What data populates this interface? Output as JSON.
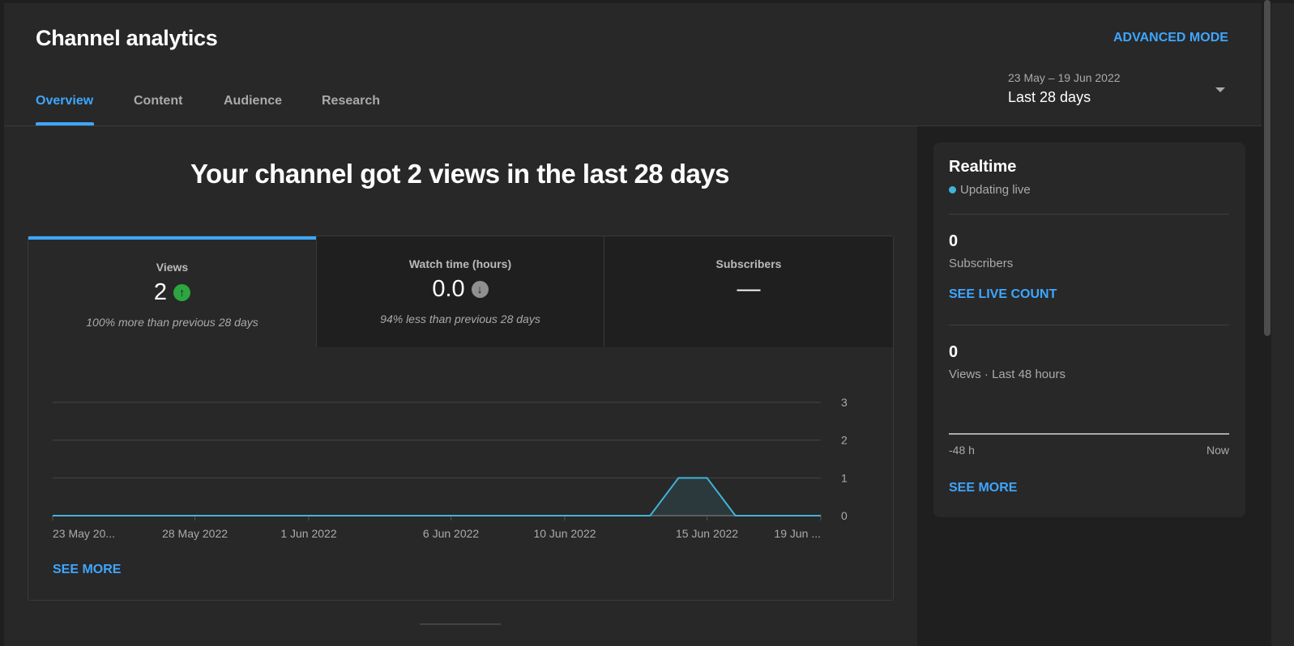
{
  "header": {
    "title": "Channel analytics",
    "advanced_mode": "ADVANCED MODE",
    "tabs": [
      {
        "label": "Overview",
        "active": true
      },
      {
        "label": "Content"
      },
      {
        "label": "Audience"
      },
      {
        "label": "Research"
      }
    ],
    "date_range": "23 May – 19 Jun 2022",
    "date_preset": "Last 28 days"
  },
  "headline": "Your channel got 2 views in the last 28 days",
  "metrics": [
    {
      "label": "Views",
      "value": "2",
      "trend": "up",
      "trend_icon": "arrow-up-icon",
      "comparison": "100% more than previous 28 days",
      "selected": true
    },
    {
      "label": "Watch time (hours)",
      "value": "0.0",
      "trend": "down",
      "trend_icon": "arrow-down-icon",
      "comparison": "94% less than previous 28 days"
    },
    {
      "label": "Subscribers",
      "value": "—"
    }
  ],
  "colors": {
    "accent": "#3ea6ff",
    "trend_up": "#2ba640",
    "trend_down": "#909090",
    "line": "#41b4d9"
  },
  "chart_data": {
    "type": "line",
    "series": [
      {
        "values": [
          0,
          0,
          0,
          0,
          0,
          0,
          0,
          0,
          0,
          0,
          0,
          0,
          0,
          0,
          0,
          0,
          0,
          0,
          0,
          0,
          0,
          0,
          1,
          1,
          0,
          0,
          0,
          0
        ]
      }
    ],
    "x": [
      "23 May 2022",
      "24 May 2022",
      "25 May 2022",
      "26 May 2022",
      "27 May 2022",
      "28 May 2022",
      "29 May 2022",
      "30 May 2022",
      "31 May 2022",
      "1 Jun 2022",
      "2 Jun 2022",
      "3 Jun 2022",
      "4 Jun 2022",
      "5 Jun 2022",
      "6 Jun 2022",
      "7 Jun 2022",
      "8 Jun 2022",
      "9 Jun 2022",
      "10 Jun 2022",
      "11 Jun 2022",
      "12 Jun 2022",
      "13 Jun 2022",
      "14 Jun 2022",
      "15 Jun 2022",
      "16 Jun 2022",
      "17 Jun 2022",
      "18 Jun 2022",
      "19 Jun 2022"
    ],
    "xtick_labels": [
      "23 May 20...",
      "28 May 2022",
      "1 Jun 2022",
      "6 Jun 2022",
      "10 Jun 2022",
      "15 Jun 2022",
      "19 Jun ..."
    ],
    "xtick_index": [
      0,
      5,
      9,
      14,
      18,
      23,
      27
    ],
    "yticks": [
      "0",
      "1",
      "2",
      "3"
    ],
    "ylim": [
      0,
      3
    ],
    "grid": true,
    "y_axis": "right"
  },
  "see_more": "SEE MORE",
  "realtime": {
    "title": "Realtime",
    "status": "Updating live",
    "subscribers": "0",
    "subscribers_label": "Subscribers",
    "see_live": "SEE LIVE COUNT",
    "views": "0",
    "views_label": "Views · Last 48 hours",
    "axis_start": "-48 h",
    "axis_end": "Now",
    "see_more": "SEE MORE"
  }
}
